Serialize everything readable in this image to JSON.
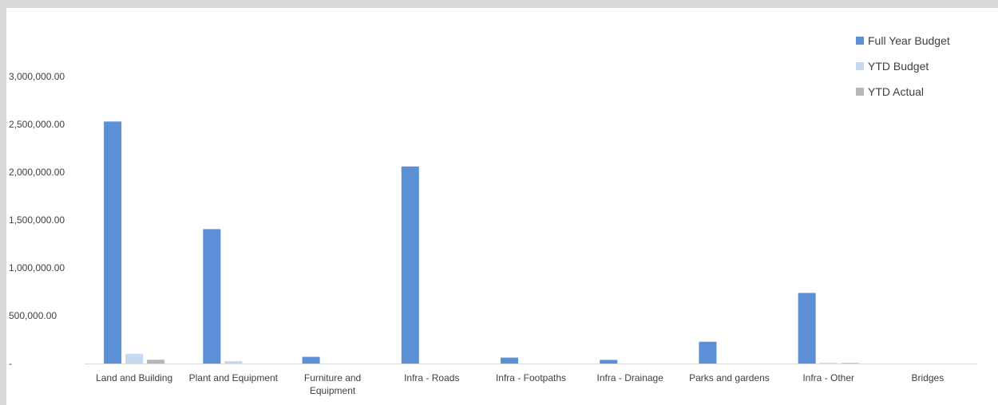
{
  "chart_data": {
    "type": "bar",
    "title": "",
    "xlabel": "",
    "ylabel": "",
    "ylim": [
      0,
      3300000
    ],
    "y_ticks": [
      0,
      500000,
      1000000,
      1500000,
      2000000,
      2500000,
      3000000
    ],
    "y_tick_labels": [
      "-",
      "500,000.00",
      "1,000,000.00",
      "1,500,000.00",
      "2,000,000.00",
      "2,500,000.00",
      "3,000,000.00"
    ],
    "grid": false,
    "legend_position": "top-right",
    "categories": [
      [
        "Land and Building"
      ],
      [
        "Plant and Equipment"
      ],
      [
        "Furniture and",
        "Equipment"
      ],
      [
        "Infra - Roads"
      ],
      [
        "Infra - Footpaths"
      ],
      [
        "Infra - Drainage"
      ],
      [
        "Parks and gardens"
      ],
      [
        "Infra - Other"
      ],
      [
        "Bridges"
      ]
    ],
    "series": [
      {
        "name": "Full Year Budget",
        "color": "#5b8fd6",
        "values": [
          2530000,
          1405000,
          70000,
          2060000,
          62000,
          38000,
          228000,
          738000,
          0
        ]
      },
      {
        "name": "YTD Budget",
        "color": "#c5d9f1",
        "values": [
          102000,
          25000,
          0,
          0,
          0,
          0,
          0,
          8000,
          0
        ]
      },
      {
        "name": "YTD Actual",
        "color": "#b7b7b7",
        "values": [
          40000,
          0,
          0,
          0,
          0,
          0,
          0,
          6000,
          0
        ]
      }
    ]
  }
}
